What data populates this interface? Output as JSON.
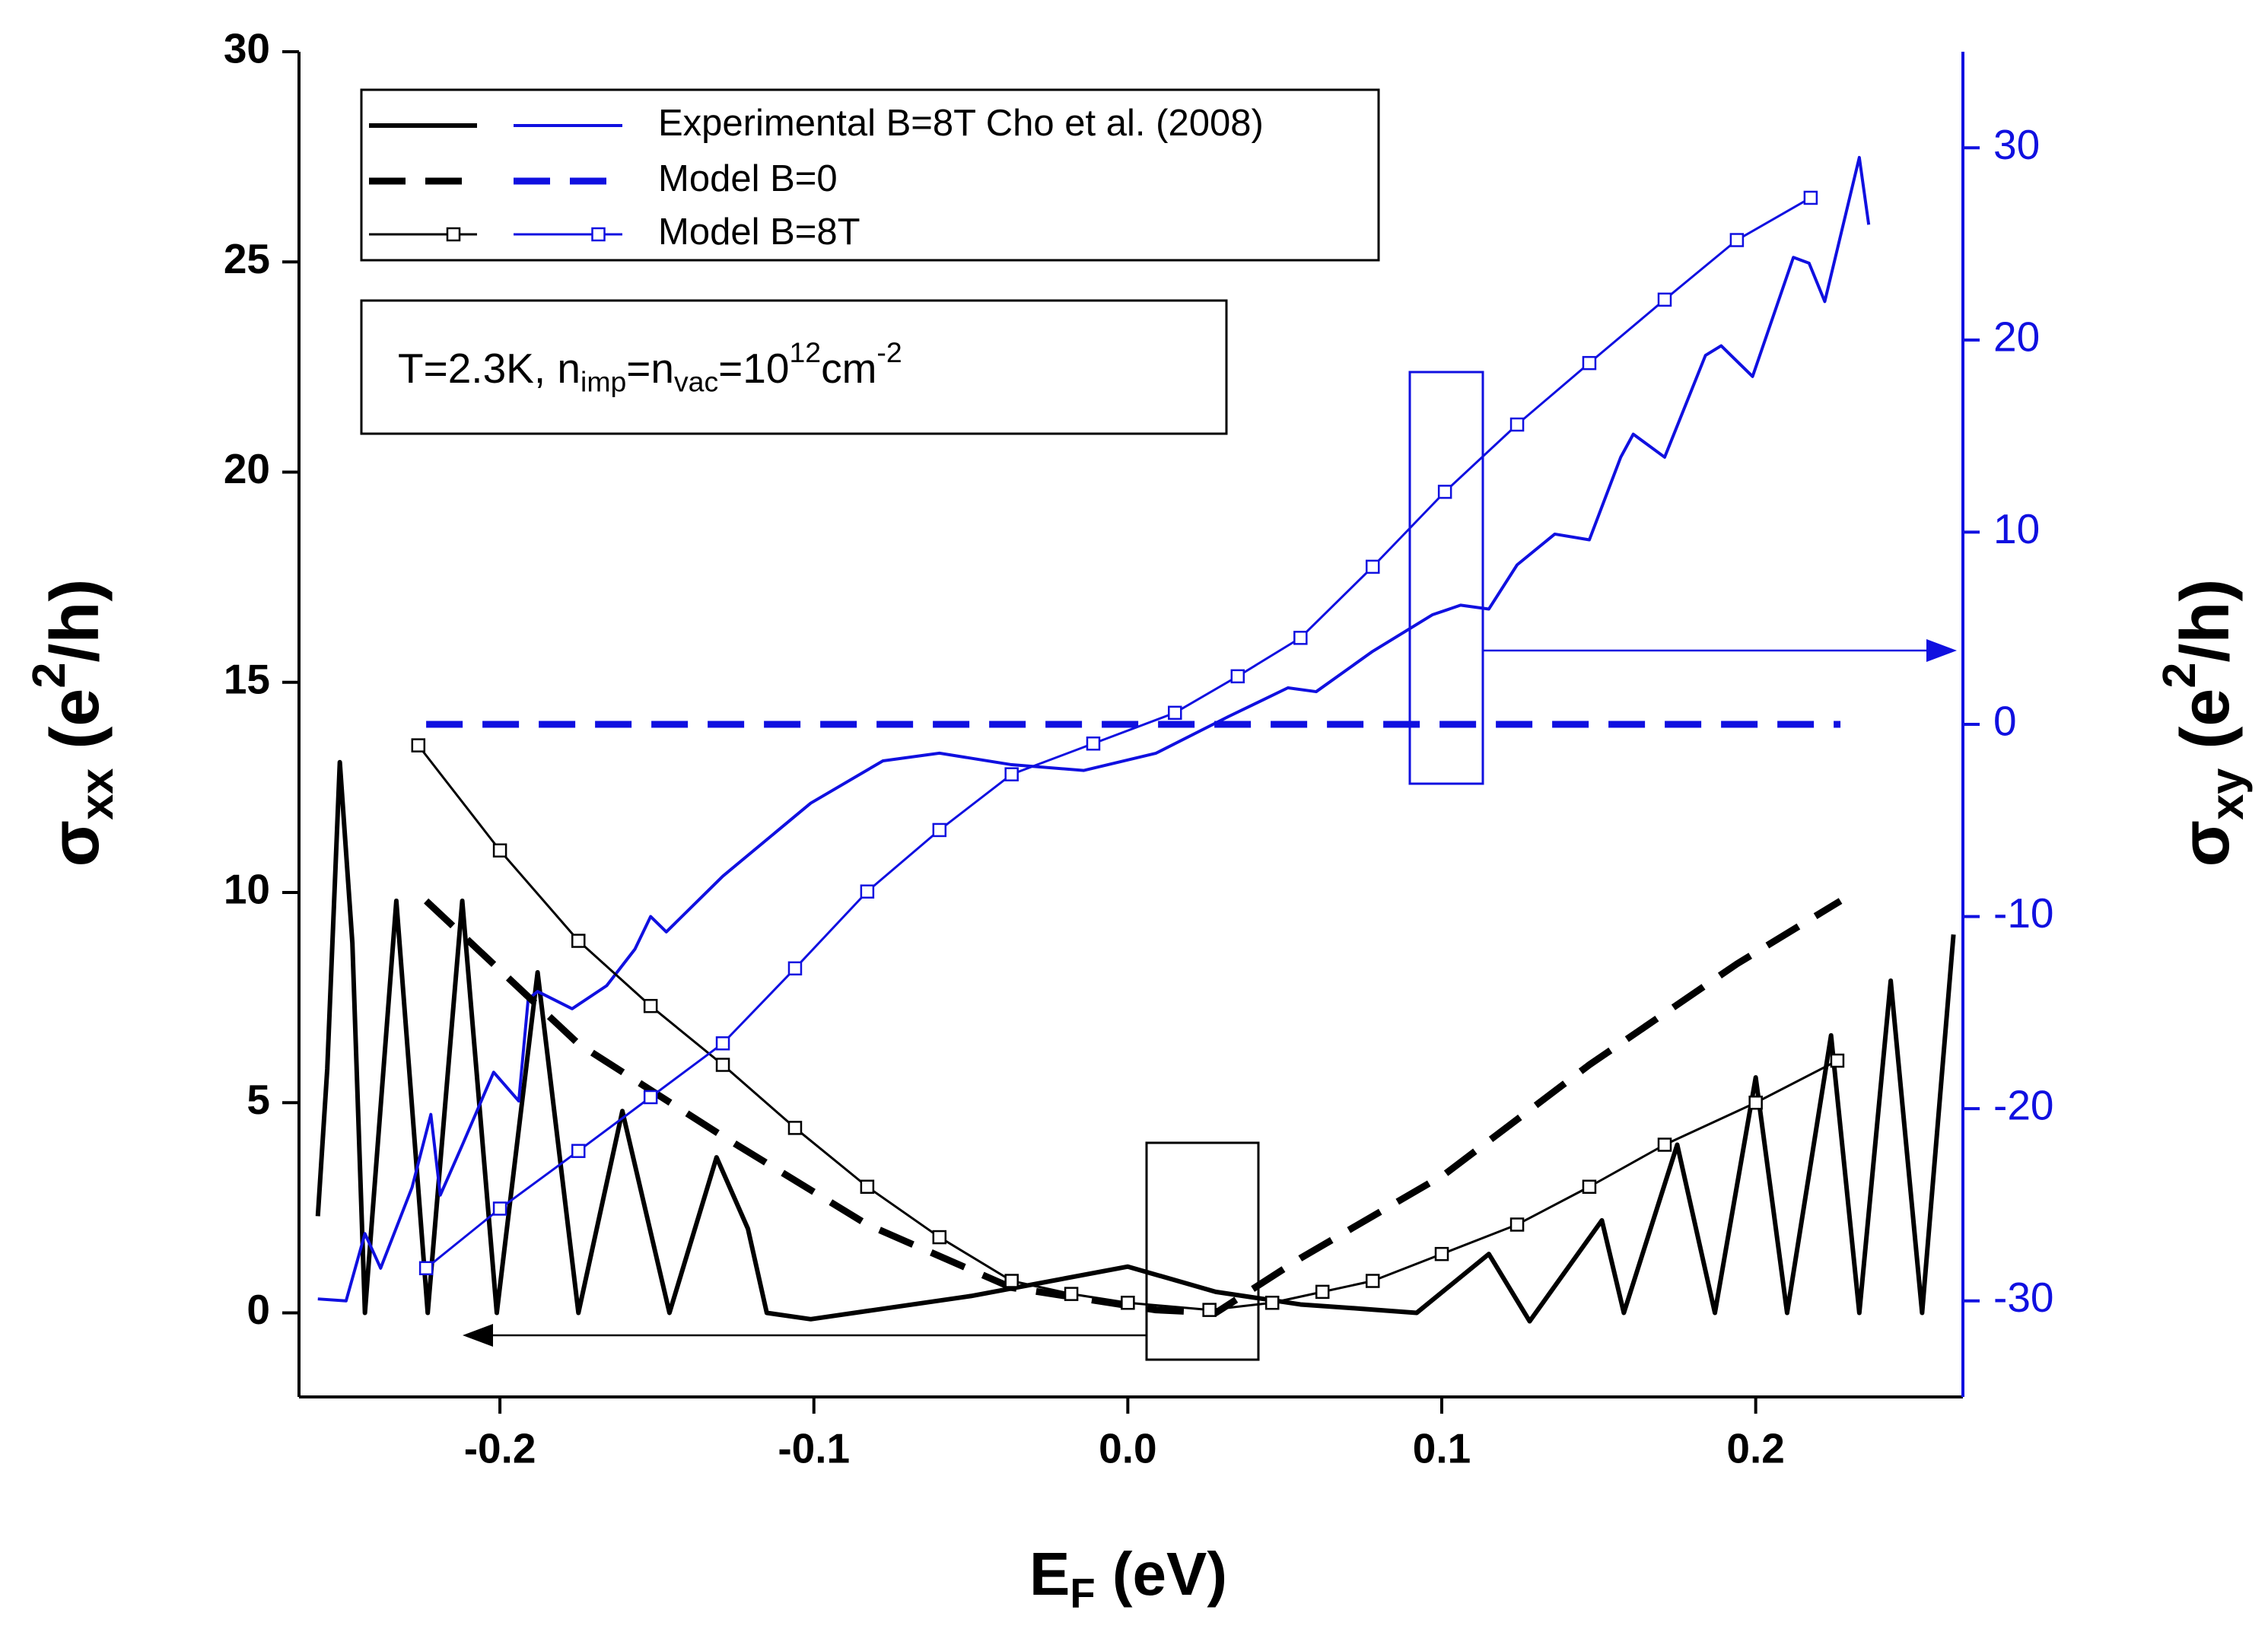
{
  "chart_data": {
    "type": "line",
    "xlabel": [
      {
        "text": "E"
      },
      {
        "text": "F",
        "shift": "sub"
      },
      {
        "text": " (eV)"
      }
    ],
    "ylabel": [
      {
        "text": "σ"
      },
      {
        "text": "xx",
        "shift": "sub"
      },
      {
        "text": " (e"
      },
      {
        "text": "2",
        "shift": "super"
      },
      {
        "text": "/h)"
      }
    ],
    "y2label": [
      {
        "text": "σ"
      },
      {
        "text": "xy",
        "shift": "sub"
      },
      {
        "text": " (e"
      },
      {
        "text": "2",
        "shift": "super"
      },
      {
        "text": "/h)"
      }
    ],
    "annotation": [
      {
        "text": "T=2.3K, n"
      },
      {
        "text": "imp",
        "shift": "sub"
      },
      {
        "text": "=n"
      },
      {
        "text": "vac",
        "shift": "sub"
      },
      {
        "text": "=10"
      },
      {
        "text": "12",
        "shift": "super"
      },
      {
        "text": "cm"
      },
      {
        "text": "-2",
        "shift": "super"
      }
    ],
    "xlim": [
      -0.264,
      0.266
    ],
    "xticks": [
      -0.2,
      -0.1,
      {
        "value": 0,
        "label": "0.0"
      },
      0.1,
      0.2
    ],
    "ylim": [
      -2,
      30
    ],
    "yticks": [
      0,
      5,
      10,
      15,
      20,
      25,
      30
    ],
    "y2lim": [
      -35,
      35
    ],
    "y2ticks": [
      -30,
      -20,
      -10,
      0,
      10,
      20,
      30
    ],
    "y2color": "#1010e0",
    "series": [
      {
        "name": "Experimental B=8T Cho et al. (2008)",
        "color": "#000000",
        "axis": "y",
        "dash": false,
        "marker": null,
        "width": 6,
        "x": [
          -0.258,
          -0.255,
          -0.251,
          -0.247,
          -0.243,
          -0.233,
          -0.223,
          -0.212,
          -0.201,
          -0.188,
          -0.175,
          -0.161,
          -0.146,
          -0.131,
          -0.121,
          -0.115,
          -0.101,
          -0.05,
          0.0,
          0.028,
          0.055,
          0.074,
          0.092,
          0.115,
          0.128,
          0.151,
          0.158,
          0.175,
          0.187,
          0.2,
          0.21,
          0.224,
          0.233,
          0.243,
          0.253,
          0.263
        ],
        "values": [
          2.3,
          5.8,
          13.1,
          8.8,
          0,
          9.8,
          0,
          9.8,
          0,
          8.1,
          0,
          4.8,
          0,
          3.7,
          2.0,
          0,
          -0.15,
          0.4,
          1.1,
          0.5,
          0.2,
          0.1,
          0,
          1.4,
          -0.2,
          2.2,
          0,
          4.0,
          0,
          5.6,
          0,
          6.6,
          0,
          7.9,
          0,
          9.0
        ]
      },
      {
        "name": "Experimental B=8T Cho et al. (2008)",
        "color": "#1010e0",
        "axis": "y2",
        "dash": false,
        "marker": null,
        "width": 4,
        "x": [
          -0.258,
          -0.249,
          -0.243,
          -0.238,
          -0.228,
          -0.222,
          -0.219,
          -0.212,
          -0.202,
          -0.194,
          -0.191,
          -0.188,
          -0.177,
          -0.166,
          -0.157,
          -0.152,
          -0.147,
          -0.129,
          -0.101,
          -0.078,
          -0.06,
          -0.037,
          -0.014,
          0.009,
          0.032,
          0.051,
          0.06,
          0.078,
          0.097,
          0.106,
          0.115,
          0.124,
          0.136,
          0.147,
          0.157,
          0.161,
          0.171,
          0.184,
          0.189,
          0.199,
          0.212,
          0.217,
          0.222,
          0.233,
          0.236
        ],
        "values": [
          -29.9,
          -30,
          -26.5,
          -28.3,
          -24.1,
          -20.3,
          -24.5,
          -21.9,
          -18.1,
          -19.6,
          -14.3,
          -13.9,
          -14.8,
          -13.6,
          -11.7,
          -10.0,
          -10.8,
          -7.9,
          -4.1,
          -1.9,
          -1.5,
          -2.1,
          -2.4,
          -1.5,
          0.4,
          1.9,
          1.7,
          3.8,
          5.7,
          6.2,
          6.0,
          8.3,
          9.9,
          9.6,
          13.9,
          15.1,
          13.9,
          19.2,
          19.7,
          18.1,
          24.3,
          24.0,
          22.0,
          29.5,
          26.0
        ]
      },
      {
        "name": "Model B=0",
        "color": "#000000",
        "axis": "y",
        "dash": true,
        "marker": null,
        "width": 9,
        "x": [
          -0.2235,
          -0.175,
          -0.129,
          -0.083,
          -0.037,
          0.009,
          0.028,
          0.055,
          0.101,
          0.147,
          0.194,
          0.227
        ],
        "values": [
          9.8,
          6.4,
          4.2,
          2.1,
          0.6,
          0.07,
          0,
          1.3,
          3.3,
          5.9,
          8.3,
          9.8
        ]
      },
      {
        "name": "Model B=0",
        "color": "#1010e0",
        "axis": "y2",
        "dash": true,
        "marker": null,
        "width": 9,
        "x": [
          -0.2235,
          0.227
        ],
        "values": [
          0,
          0
        ]
      },
      {
        "name": "Model B=8T",
        "color": "#000000",
        "axis": "y",
        "dash": false,
        "marker": "square",
        "width": 3,
        "x": [
          -0.226,
          -0.2,
          -0.175,
          -0.152,
          -0.129,
          -0.106,
          -0.083,
          -0.06,
          -0.037,
          -0.018,
          0.0,
          0.026,
          0.046,
          0.062,
          0.078,
          0.1,
          0.124,
          0.147,
          0.171,
          0.2,
          0.226
        ],
        "values": [
          13.5,
          11.0,
          8.85,
          7.3,
          5.9,
          4.4,
          3.0,
          1.8,
          0.76,
          0.45,
          0.24,
          0.07,
          0.24,
          0.5,
          0.76,
          1.4,
          2.1,
          3.0,
          4.0,
          5.0,
          6.0
        ]
      },
      {
        "name": "Model B=8T",
        "color": "#1010e0",
        "axis": "y2",
        "dash": false,
        "marker": "square",
        "width": 3,
        "x": [
          -0.2235,
          -0.2,
          -0.175,
          -0.152,
          -0.129,
          -0.106,
          -0.083,
          -0.06,
          -0.037,
          -0.011,
          0.015,
          0.035,
          0.055,
          0.078,
          0.101,
          0.124,
          0.147,
          0.171,
          0.194,
          0.2175
        ],
        "values": [
          -28.3,
          -25.2,
          -22.2,
          -19.4,
          -16.6,
          -12.7,
          -8.7,
          -5.5,
          -2.6,
          -1.0,
          0.6,
          2.5,
          4.5,
          8.2,
          12.1,
          15.6,
          18.8,
          22.1,
          25.2,
          27.4
        ]
      }
    ]
  }
}
